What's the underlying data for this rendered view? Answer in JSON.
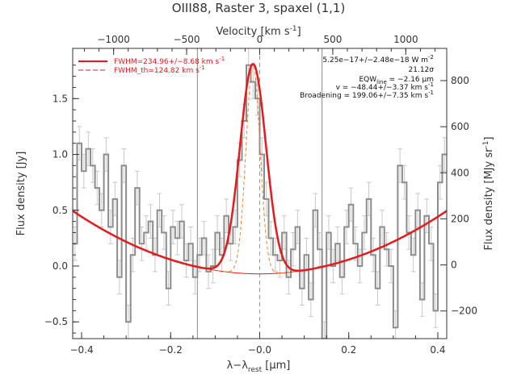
{
  "chart_data": {
    "type": "line",
    "title": "OIII88, Raster 3, spaxel (1,1)",
    "xlabel": "λ−λ",
    "xlabel_sub": "rest",
    "xlabel_unit": " [μm]",
    "ylabel": "Flux density [Jy]",
    "top_xlabel": "Velocity [km s",
    "top_xlabel_sup": "-1",
    "top_xlabel_end": "]",
    "right_ylabel": "Flux density [MJy sr",
    "right_ylabel_sup": "-1",
    "right_ylabel_end": "]",
    "xlim": [
      -0.42,
      0.42
    ],
    "ylim": [
      -0.65,
      1.95
    ],
    "top_xlim": [
      -1280,
      1280
    ],
    "right_ylim": [
      -320,
      940
    ],
    "x_ticks": [
      -0.4,
      -0.2,
      0.0,
      0.2,
      0.4
    ],
    "x_tick_labels": [
      "−0.4",
      "−0.2",
      "−0.0",
      "0.2",
      "0.4"
    ],
    "y_ticks": [
      -0.5,
      0.0,
      0.5,
      1.0,
      1.5
    ],
    "y_tick_labels": [
      "−0.5",
      "0.0",
      "0.5",
      "1.0",
      "1.5"
    ],
    "top_ticks": [
      -1000,
      -500,
      0,
      500,
      1000
    ],
    "top_tick_labels": [
      "−1000",
      "−500",
      "0",
      "500",
      "1000"
    ],
    "right_ticks": [
      -200,
      0,
      200,
      400,
      600,
      800
    ],
    "right_tick_labels": [
      "−200",
      "0",
      "200",
      "400",
      "600",
      "800"
    ],
    "vertical_lines": [
      -0.14,
      0.14
    ],
    "dashed_vertical_line": 0.0,
    "legend": [
      {
        "label": "FWHM=234.96+/−8.68 km s",
        "sup": "-1",
        "style": "solid",
        "color": "#e41a1c"
      },
      {
        "label": "FWHM_th=124.82 km s",
        "sup": "-1",
        "style": "dashed",
        "color": "#e41a1c"
      }
    ],
    "annotations": [
      "5.25e−17+/−2.48e−18 W m",
      "21.12σ",
      "EQW",
      "v = −48.44+/−3.37 km s",
      "Broadening = 199.06+/−7.35 km s"
    ],
    "annotation_sup": [
      "-2",
      "",
      "",
      "-1",
      "-1"
    ],
    "eqw_sub": "line",
    "eqw_value": " = −2.16 μm",
    "series": [
      {
        "kind": "data_steps",
        "color": "#8c8c8c",
        "x": [
          -0.42,
          -0.41,
          -0.4,
          -0.39,
          -0.38,
          -0.37,
          -0.36,
          -0.35,
          -0.34,
          -0.33,
          -0.32,
          -0.31,
          -0.3,
          -0.29,
          -0.28,
          -0.27,
          -0.26,
          -0.25,
          -0.24,
          -0.23,
          -0.22,
          -0.21,
          -0.2,
          -0.19,
          -0.18,
          -0.17,
          -0.16,
          -0.15,
          -0.14,
          -0.13,
          -0.12,
          -0.11,
          -0.1,
          -0.09,
          -0.08,
          -0.07,
          -0.06,
          -0.05,
          -0.04,
          -0.03,
          -0.02,
          -0.01,
          0.0,
          0.01,
          0.02,
          0.03,
          0.04,
          0.05,
          0.06,
          0.07,
          0.08,
          0.09,
          0.1,
          0.11,
          0.12,
          0.13,
          0.14,
          0.15,
          0.16,
          0.17,
          0.18,
          0.19,
          0.2,
          0.21,
          0.22,
          0.23,
          0.24,
          0.25,
          0.26,
          0.27,
          0.28,
          0.29,
          0.3,
          0.31,
          0.32,
          0.33,
          0.34,
          0.35,
          0.36,
          0.37,
          0.38,
          0.39,
          0.4,
          0.41
        ],
        "y": [
          0.2,
          1.1,
          0.85,
          1.05,
          0.9,
          0.7,
          0.5,
          1.0,
          0.35,
          0.6,
          -0.1,
          0.9,
          -0.5,
          0.1,
          0.7,
          0.2,
          0.3,
          0.4,
          0.1,
          0.5,
          0.3,
          -0.2,
          0.35,
          0.25,
          0.4,
          0.05,
          0.2,
          -0.1,
          0.1,
          0.25,
          -0.05,
          0.0,
          0.3,
          0.1,
          0.45,
          0.2,
          0.35,
          0.95,
          1.3,
          1.8,
          1.65,
          1.5,
          1.0,
          0.6,
          0.25,
          0.1,
          0.05,
          0.3,
          -0.1,
          0.15,
          0.35,
          -0.2,
          0.1,
          -0.3,
          0.5,
          0.15,
          -0.65,
          0.3,
          0.0,
          0.2,
          -0.1,
          0.35,
          0.55,
          0.2,
          0.0,
          0.3,
          0.6,
          0.1,
          -0.2,
          0.35,
          0.15,
          0.0,
          -0.55,
          0.9,
          0.75,
          0.3,
          0.1,
          0.5,
          -0.3,
          0.45,
          0.2,
          -0.4,
          0.75,
          1.0
        ],
        "error": 0.15
      },
      {
        "kind": "fit",
        "color": "#e41a1c",
        "amplitude": 1.88,
        "center": -0.015,
        "fwhm_um": 0.069,
        "baseline": [
          -0.07,
          0.0,
          3.2
        ]
      },
      {
        "kind": "fit_thermal",
        "color": "#f07f32",
        "amplitude": 1.88,
        "center": -0.015,
        "fwhm_um": 0.037
      }
    ]
  }
}
